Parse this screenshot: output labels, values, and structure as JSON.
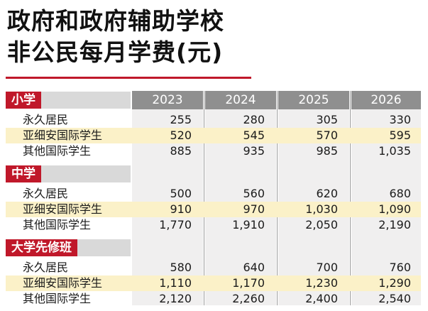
{
  "title": {
    "line1": "政府和政府辅助学校",
    "line2": "非公民每月学费(元)"
  },
  "years": [
    "2023",
    "2024",
    "2025",
    "2026"
  ],
  "sections": [
    {
      "name": "小学",
      "rows": [
        {
          "label": "永久居民",
          "values": [
            "255",
            "280",
            "305",
            "330"
          ],
          "highlight": false
        },
        {
          "label": "亚细安国际学生",
          "values": [
            "520",
            "545",
            "570",
            "595"
          ],
          "highlight": true
        },
        {
          "label": "其他国际学生",
          "values": [
            "885",
            "935",
            "985",
            "1,035"
          ],
          "highlight": false
        }
      ]
    },
    {
      "name": "中学",
      "rows": [
        {
          "label": "永久居民",
          "values": [
            "500",
            "560",
            "620",
            "680"
          ],
          "highlight": false
        },
        {
          "label": "亚细安国际学生",
          "values": [
            "910",
            "970",
            "1,030",
            "1,090"
          ],
          "highlight": true
        },
        {
          "label": "其他国际学生",
          "values": [
            "1,770",
            "1,910",
            "2,050",
            "2,190"
          ],
          "highlight": false
        }
      ]
    },
    {
      "name": "大学先修班",
      "rows": [
        {
          "label": "永久居民",
          "values": [
            "580",
            "640",
            "700",
            "760"
          ],
          "highlight": false
        },
        {
          "label": "亚细安国际学生",
          "values": [
            "1,110",
            "1,170",
            "1,230",
            "1,290"
          ],
          "highlight": true
        },
        {
          "label": "其他国际学生",
          "values": [
            "2,120",
            "2,260",
            "2,400",
            "2,540"
          ],
          "highlight": false
        }
      ]
    }
  ],
  "colors": {
    "accent_red": "#c0182a",
    "header_gray": "#8f8f8f",
    "row_highlight": "#fbf1c8"
  }
}
